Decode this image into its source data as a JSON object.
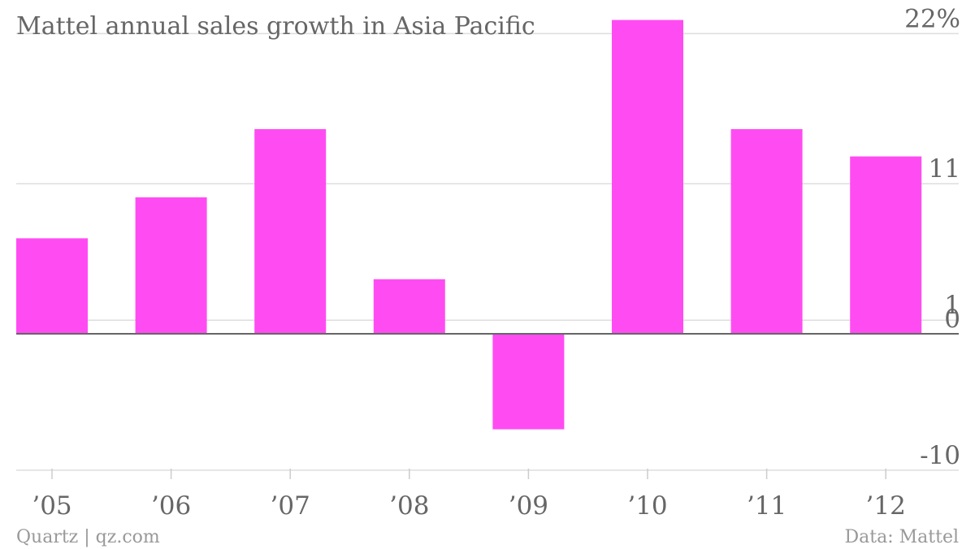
{
  "chart_data": {
    "type": "bar",
    "title": "Mattel annual sales growth in Asia Pacific",
    "categories": [
      "’05",
      "’06",
      "’07",
      "’08",
      "’09",
      "’10",
      "’11",
      "’12"
    ],
    "series": [
      {
        "values": [
          7,
          10,
          15,
          4,
          -7,
          23,
          15,
          13
        ]
      }
    ],
    "ylim": [
      -10,
      23
    ],
    "yticks": [
      {
        "value": 22,
        "label": "22%"
      },
      {
        "value": 11,
        "label": "11"
      },
      {
        "value": 1,
        "label": "1"
      },
      {
        "value": 0,
        "label": "0"
      },
      {
        "value": -10,
        "label": "-10"
      }
    ],
    "grid": true,
    "bar_color": "#ff4cf2",
    "gridline_color": "#dddddd",
    "baseline_color": "#666666",
    "xlabel": "",
    "ylabel": ""
  },
  "footer": {
    "source_left": "Quartz | qz.com",
    "source_right": "Data: Mattel"
  }
}
